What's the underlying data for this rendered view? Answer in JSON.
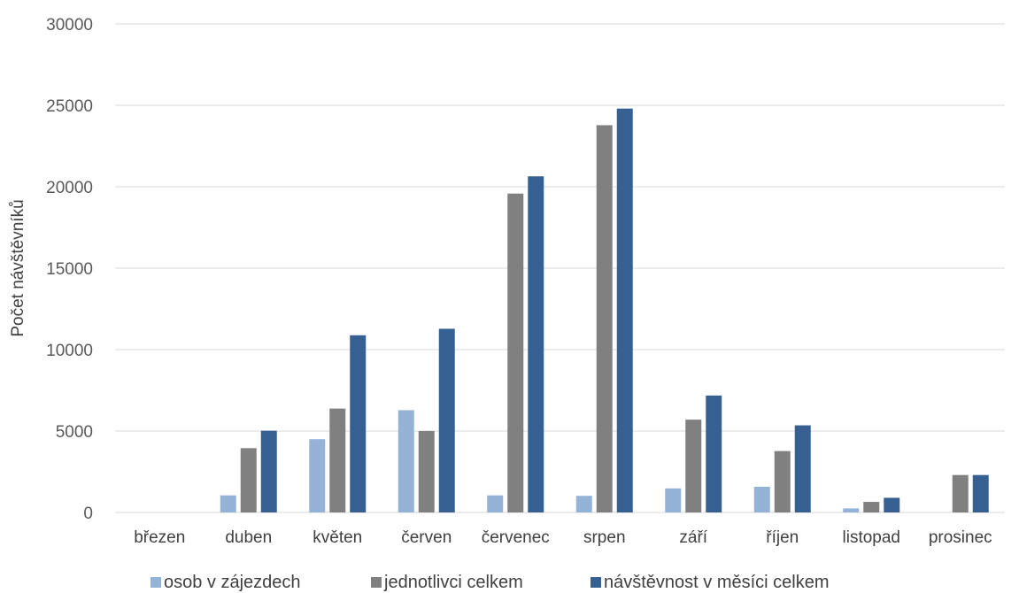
{
  "chart_data": {
    "type": "bar",
    "title": "",
    "xlabel": "",
    "ylabel": "Počet návštěvníků",
    "ylim": [
      0,
      30000
    ],
    "yticks": [
      0,
      5000,
      10000,
      15000,
      20000,
      25000,
      30000
    ],
    "grid": true,
    "legend_position": "bottom",
    "categories": [
      "březen",
      "duben",
      "květen",
      "červen",
      "červenec",
      "srpen",
      "září",
      "říjen",
      "listopad",
      "prosinec"
    ],
    "series": [
      {
        "name": "osob v zájezdech",
        "color": "#95b3d7",
        "values": [
          0,
          1050,
          4500,
          6280,
          1050,
          1020,
          1480,
          1580,
          250,
          0
        ]
      },
      {
        "name": "jednotlivci celkem",
        "color": "#808080",
        "values": [
          0,
          3950,
          6380,
          5000,
          19580,
          23780,
          5700,
          3770,
          650,
          2300
        ]
      },
      {
        "name": "návštěvnost v měsíci celkem",
        "color": "#376092",
        "values": [
          0,
          5020,
          10880,
          11280,
          20640,
          24800,
          7180,
          5350,
          900,
          2300
        ]
      }
    ]
  }
}
